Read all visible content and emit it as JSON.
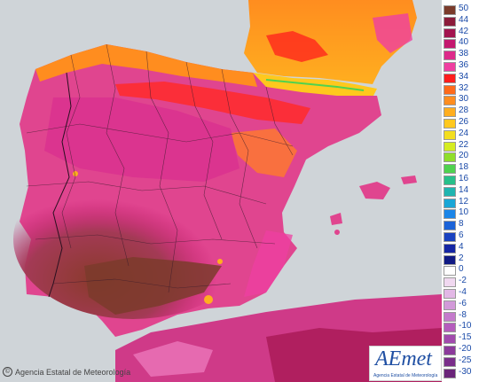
{
  "map": {
    "legend": {
      "ticks": [
        "50",
        "44",
        "42",
        "40",
        "38",
        "36",
        "34",
        "32",
        "30",
        "28",
        "26",
        "24",
        "22",
        "20",
        "18",
        "16",
        "14",
        "12",
        "10",
        "8",
        "6",
        "4",
        "2",
        "0",
        "-2",
        "-4",
        "-6",
        "-8",
        "-10",
        "-15",
        "-20",
        "-25",
        "-30"
      ],
      "colors": [
        "#7b3b2b",
        "#8c1c3a",
        "#a3144f",
        "#c4186f",
        "#dd2a8a",
        "#ef3fa1",
        "#ff1d1d",
        "#ff6a1a",
        "#ff8d1f",
        "#ffae1f",
        "#ffc81e",
        "#f3de1f",
        "#d5ec22",
        "#8fde2c",
        "#4fd24f",
        "#27c08a",
        "#20b5b0",
        "#1aa6d6",
        "#1b86e8",
        "#1b63d8",
        "#1a42c0",
        "#1526a4",
        "#101a84",
        "#ffffff",
        "#f0d8f0",
        "#e2b8e6",
        "#d29ad9",
        "#c47bcc",
        "#b55dbd",
        "#a14aad",
        "#8c3a9b",
        "#7a2e8a",
        "#6a2479"
      ]
    },
    "copyright": "Agencia Estatal de Meteorología",
    "logo": {
      "name": "AEmet",
      "subtitle": "Agencia Estatal de Meteorología"
    }
  }
}
